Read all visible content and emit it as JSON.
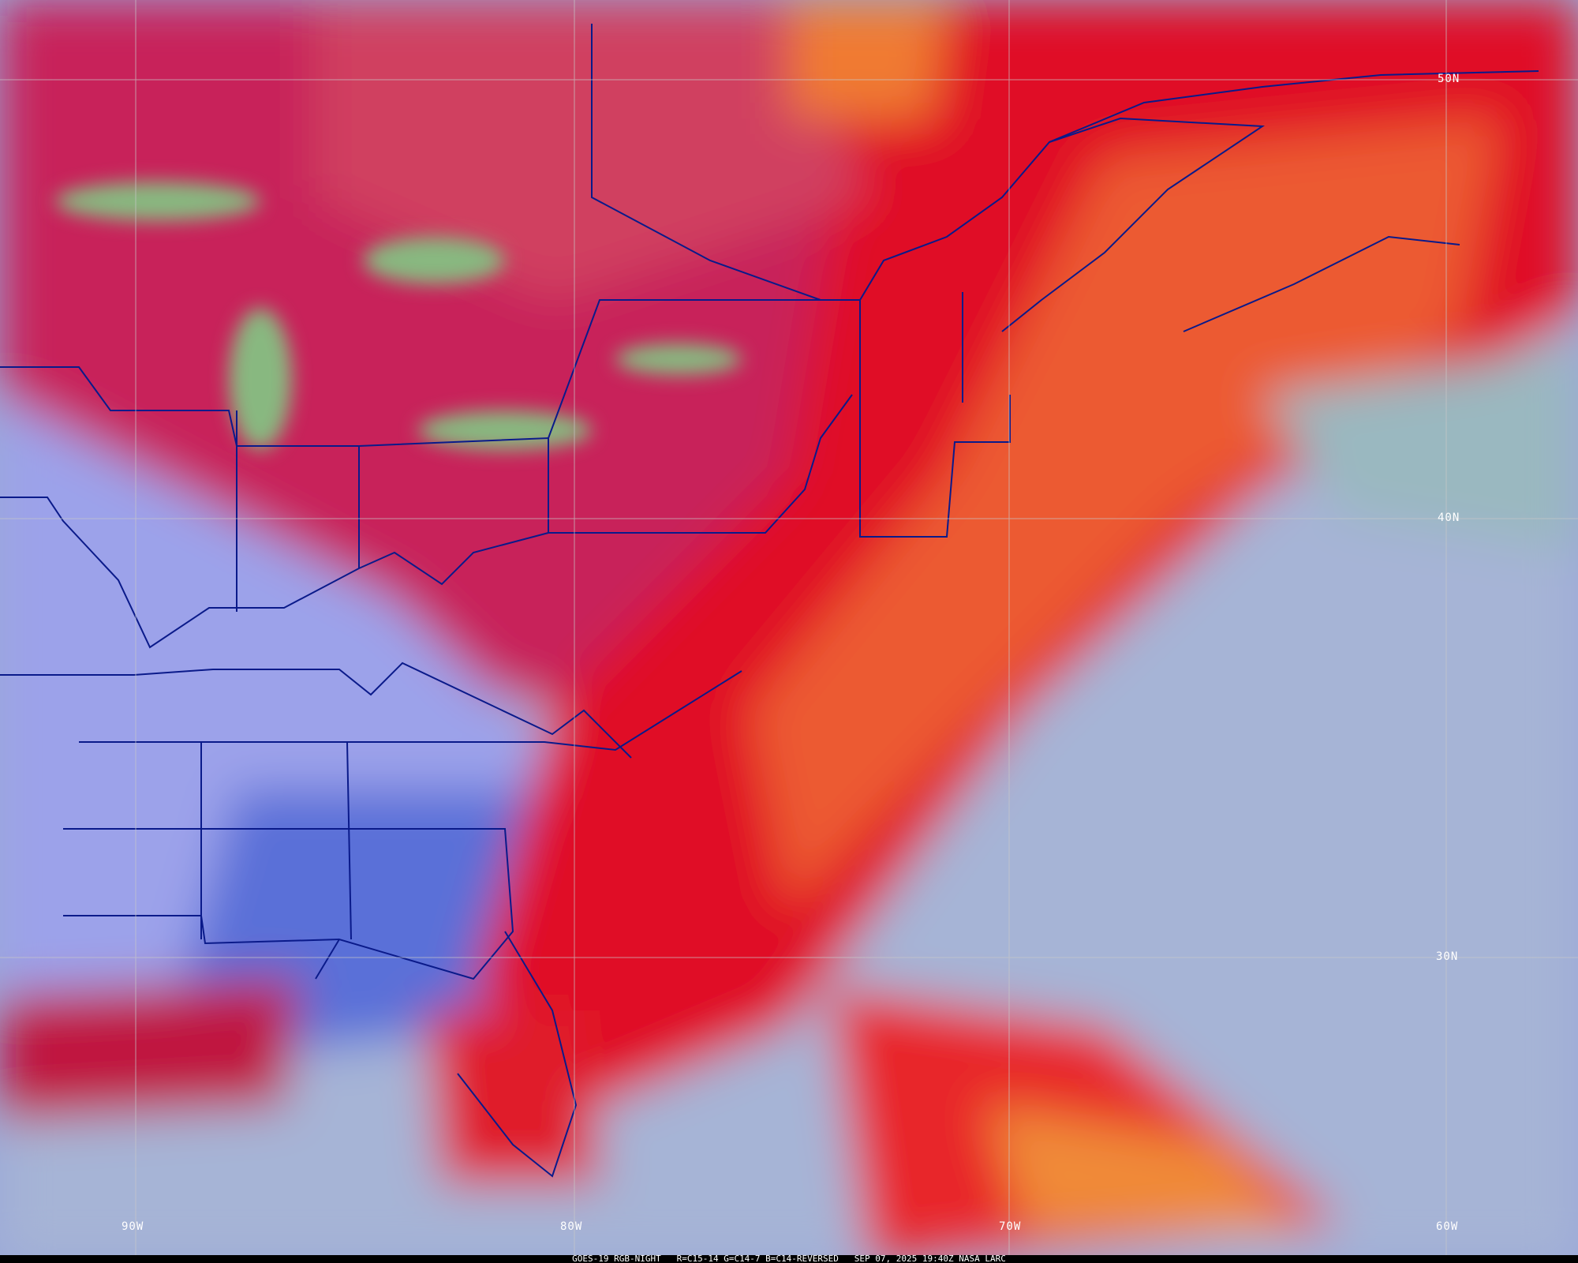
{
  "caption": {
    "satellite": "GOES-19 RGB-NIGHT",
    "channels": "R=C15-14 G=C14-7 B=C14-REVERSED",
    "timestamp": "SEP 07, 2025 19:40Z",
    "source": "NASA LARC"
  },
  "latitude_labels": [
    "50N",
    "40N",
    "30N"
  ],
  "longitude_labels": [
    "90W",
    "80W",
    "70W",
    "60W"
  ],
  "colors": {
    "cloud_red": "#e0102a",
    "cloud_orange": "#f07a30",
    "clear_ocean": "#a8b8d8",
    "clear_land": "#9aa0e8",
    "lakes": "#88b880",
    "boundaries": "#0a1a8a",
    "grid": "#c8c8c8"
  }
}
